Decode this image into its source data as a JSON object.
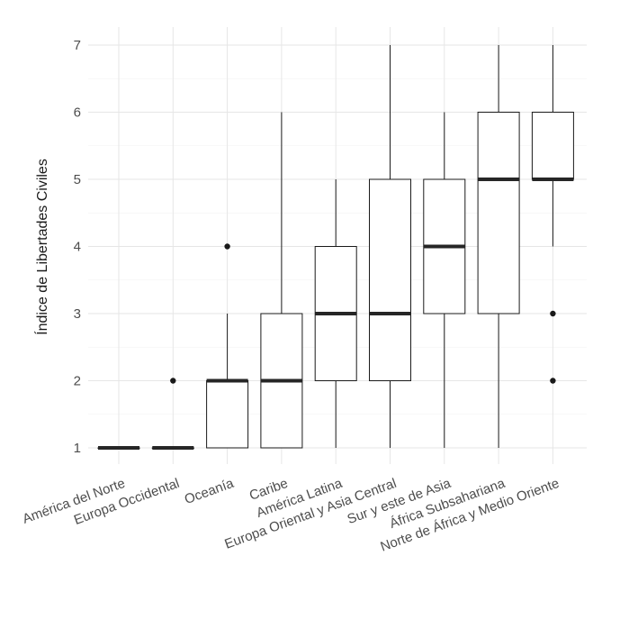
{
  "chart_data": {
    "type": "boxplot",
    "title": "",
    "xlabel": "",
    "ylabel": "Índice de Libertades Civiles",
    "ylim": [
      1,
      7
    ],
    "yticks": [
      1,
      2,
      3,
      4,
      5,
      6,
      7
    ],
    "grid": true,
    "categories": [
      "América del Norte",
      "Europa Occidental",
      "Oceanía",
      "Caribe",
      "América Latina",
      "Europa Oriental y Asia Central",
      "Sur y este de Asia",
      "África Subsahariana",
      "Norte de África y Medio Oriente"
    ],
    "boxes": [
      {
        "min": 1,
        "q1": 1,
        "median": 1,
        "q3": 1,
        "max": 1,
        "outliers": []
      },
      {
        "min": 1,
        "q1": 1,
        "median": 1,
        "q3": 1,
        "max": 1,
        "outliers": [
          2
        ]
      },
      {
        "min": 1,
        "q1": 1,
        "median": 2,
        "q3": 2,
        "max": 3,
        "outliers": [
          4
        ]
      },
      {
        "min": 1,
        "q1": 1,
        "median": 2,
        "q3": 3,
        "max": 6,
        "outliers": []
      },
      {
        "min": 1,
        "q1": 2,
        "median": 3,
        "q3": 4,
        "max": 5,
        "outliers": []
      },
      {
        "min": 1,
        "q1": 2,
        "median": 3,
        "q3": 5,
        "max": 7,
        "outliers": []
      },
      {
        "min": 1,
        "q1": 3,
        "median": 4,
        "q3": 5,
        "max": 6,
        "outliers": []
      },
      {
        "min": 1,
        "q1": 3,
        "median": 5,
        "q3": 6,
        "max": 7,
        "outliers": []
      },
      {
        "min": 4,
        "q1": 5,
        "median": 5,
        "q3": 6,
        "max": 7,
        "outliers": [
          2,
          3
        ]
      }
    ]
  }
}
